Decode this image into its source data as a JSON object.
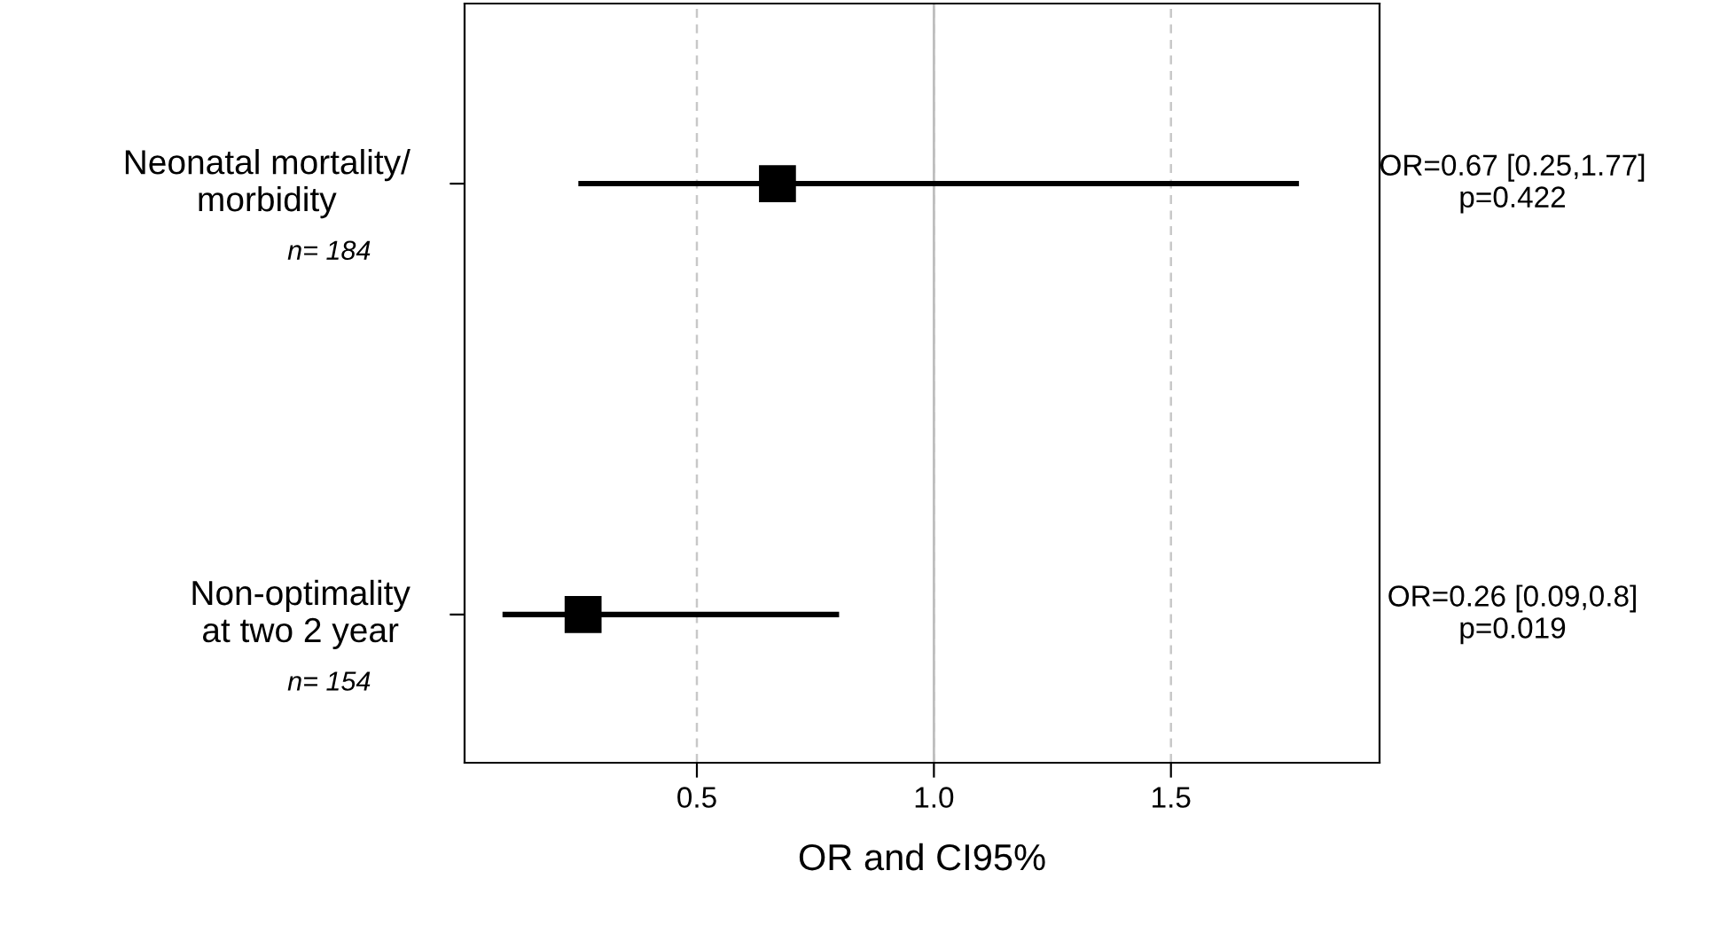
{
  "chart_data": {
    "type": "scatter",
    "orientation": "horizontal",
    "xlabel": "OR and CI95%",
    "categories": [
      "Neonatal mortality/\nmorbidity",
      "Non-optimality\nat two 2 year"
    ],
    "values": [
      0.67,
      0.26
    ],
    "errors": [
      [
        0.25,
        1.77
      ],
      [
        0.09,
        0.8
      ]
    ],
    "value_labels": [
      "OR=0.67 [0.25,1.77]\np=0.422",
      "OR=0.26 [0.09,0.8]\np=0.019"
    ],
    "color": "#000000",
    "marker": "square",
    "xlim": [
      0.01,
      1.94
    ],
    "xticks": [
      0.5,
      {
        "value": 1.0,
        "label": "1.0"
      },
      1.5
    ],
    "ref_lines": [
      {
        "axis": "x",
        "value": 1.0,
        "color": "#bebebe",
        "line_style": "solid"
      }
    ],
    "grid": "x",
    "legend": false,
    "annotations": [
      "n= 184",
      "n= 154"
    ]
  }
}
